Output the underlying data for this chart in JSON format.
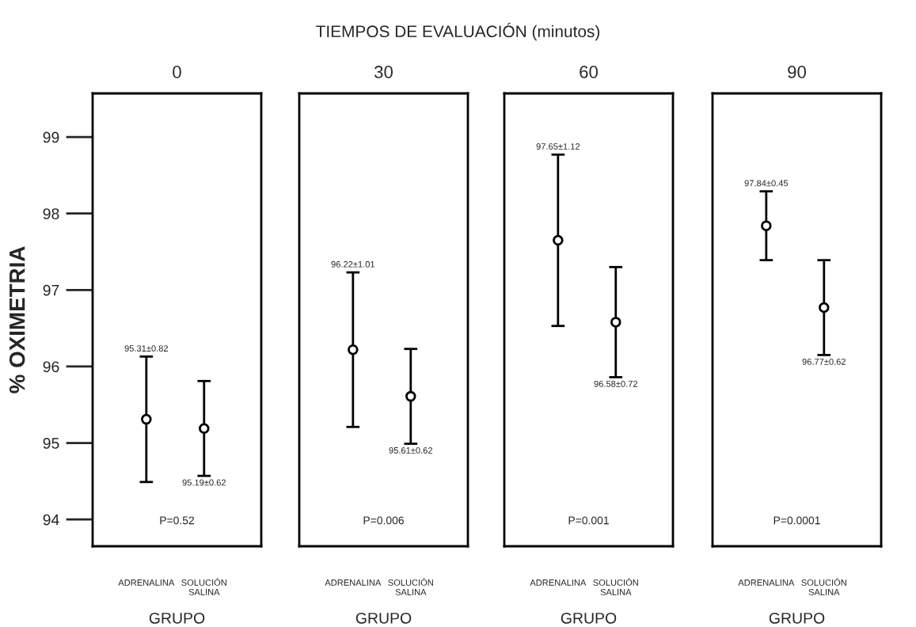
{
  "chart_data": [
    {
      "type": "scatter",
      "title": "0",
      "xlabel": "GRUPO",
      "ylabel": "% OXIMETRIA",
      "categories": [
        "ADRENALINA",
        "SOLUCIÓN\nSALINA"
      ],
      "ylim": [
        93.65,
        99.57
      ],
      "yticks": [
        94,
        95,
        96,
        97,
        98,
        99
      ],
      "marker": "circle",
      "grid": false,
      "legend": false,
      "series": [
        {
          "color": "#000000",
          "values": [
            95.31,
            95.19
          ],
          "errors": [
            0.82,
            0.62
          ]
        }
      ],
      "annotations": [
        "TIEMPOS DE EVALUACIÓN (minutos)",
        "P=0.52",
        {
          "text": "95.31±0.82",
          "x": "ADRENALINA",
          "y": 96.13
        },
        {
          "text": "95.19±0.62",
          "x": "SOLUCIÓN\nSALINA",
          "y": 94.57
        }
      ]
    },
    {
      "type": "scatter",
      "title": "30",
      "xlabel": "GRUPO",
      "categories": [
        "ADRENALINA",
        "SOLUCIÓN\nSALINA"
      ],
      "ylim": [
        93.65,
        99.57
      ],
      "tick_labels": "x",
      "marker": "circle",
      "grid": false,
      "legend": false,
      "series": [
        {
          "color": "#000000",
          "values": [
            96.22,
            95.61
          ],
          "errors": [
            1.01,
            0.62
          ]
        }
      ],
      "annotations": [
        "P=0.006",
        {
          "text": "96.22±1.01",
          "x": "ADRENALINA",
          "y": 97.23
        },
        {
          "text": "95.61±0.62",
          "x": "SOLUCIÓN\nSALINA",
          "y": 94.99
        }
      ]
    },
    {
      "type": "scatter",
      "title": "60",
      "xlabel": "GRUPO",
      "categories": [
        "ADRENALINA",
        "SOLUCIÓN\nSALINA"
      ],
      "ylim": [
        93.65,
        99.57
      ],
      "tick_labels": "x",
      "marker": "circle",
      "grid": false,
      "legend": false,
      "series": [
        {
          "color": "#000000",
          "values": [
            97.65,
            96.58
          ],
          "errors": [
            1.12,
            0.72
          ]
        }
      ],
      "annotations": [
        "P=0.001",
        {
          "text": "97.65±1.12",
          "x": "ADRENALINA",
          "y": 98.77
        },
        {
          "text": "96.58±0.72",
          "x": "SOLUCIÓN\nSALINA",
          "y": 95.86
        }
      ]
    },
    {
      "type": "scatter",
      "title": "90",
      "xlabel": "GRUPO",
      "categories": [
        "ADRENALINA",
        "SOLUCIÓN\nSALINA"
      ],
      "ylim": [
        93.65,
        99.57
      ],
      "tick_labels": "x",
      "marker": "circle",
      "grid": false,
      "legend": false,
      "series": [
        {
          "color": "#000000",
          "values": [
            97.84,
            96.77
          ],
          "errors": [
            0.45,
            0.62
          ]
        }
      ],
      "annotations": [
        "P=0.0001",
        {
          "text": "97.84±0.45",
          "x": "ADRENALINA",
          "y": 98.29
        },
        {
          "text": "96.77±0.62",
          "x": "SOLUCIÓN\nSALINA",
          "y": 96.15
        }
      ]
    }
  ]
}
